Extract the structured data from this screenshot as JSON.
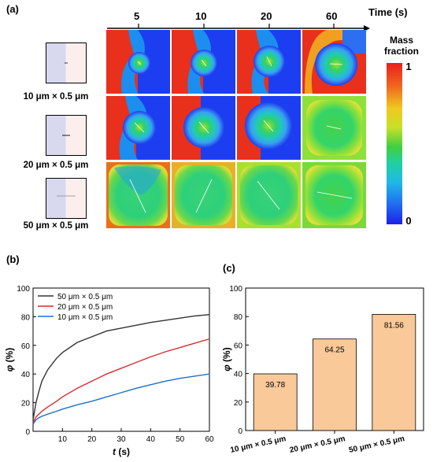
{
  "panel_a": {
    "label": "(a)",
    "time_title": "Time (s)",
    "times": [
      "5",
      "10",
      "20",
      "60"
    ],
    "devices": [
      "10 μm × 0.5 μm",
      "20 μm × 0.5 μm",
      "50 μm × 0.5 μm"
    ],
    "colorbar": {
      "title_line1": "Mass",
      "title_line2": "fraction",
      "max": "1",
      "min": "0"
    }
  },
  "panel_b": {
    "label": "(b)"
  },
  "panel_c": {
    "label": "(c)"
  },
  "chart_data": [
    {
      "type": "line",
      "panel": "(b)",
      "xlabel": "t (s)",
      "ylabel": "φ (%)",
      "xlim": [
        0,
        60
      ],
      "ylim": [
        0,
        100
      ],
      "xticks": [
        10,
        20,
        30,
        40,
        50,
        60
      ],
      "yticks": [
        0,
        20,
        40,
        60,
        80,
        100
      ],
      "legend_position": "top-left",
      "x": [
        0,
        1,
        2,
        3,
        5,
        8,
        10,
        15,
        20,
        25,
        30,
        35,
        40,
        45,
        50,
        55,
        60
      ],
      "series": [
        {
          "name": "50 μm × 0.5 μm",
          "color": "#333333",
          "values": [
            8,
            20,
            28,
            35,
            43,
            51,
            55,
            62,
            66,
            70,
            72,
            74,
            76,
            77.5,
            79,
            80.5,
            81.5
          ]
        },
        {
          "name": "20 μm × 0.5 μm",
          "color": "#d32f2f",
          "values": [
            6,
            10,
            12,
            14,
            17,
            21,
            24,
            30,
            35,
            40,
            44,
            48,
            52,
            55.5,
            58.5,
            61.5,
            64.5
          ]
        },
        {
          "name": "10 μm × 0.5 μm",
          "color": "#1f6fc5",
          "values": [
            5,
            8,
            9.5,
            10.5,
            12,
            14,
            15.5,
            18.5,
            21,
            24,
            27,
            30,
            32.5,
            35,
            37,
            38.5,
            40
          ]
        }
      ]
    },
    {
      "type": "bar",
      "panel": "(c)",
      "categories": [
        "10 μm × 0.5 μm",
        "20 μm × 0.5 μm",
        "50 μm × 0.5 μm"
      ],
      "values": [
        39.78,
        64.25,
        81.56
      ],
      "value_labels": [
        "39.78",
        "64.25",
        "81.56"
      ],
      "ylabel": "φ (%)",
      "ylim": [
        0,
        100
      ],
      "yticks": [
        0,
        20,
        40,
        60,
        80,
        100
      ],
      "bar_color": "#f9c99a"
    }
  ]
}
